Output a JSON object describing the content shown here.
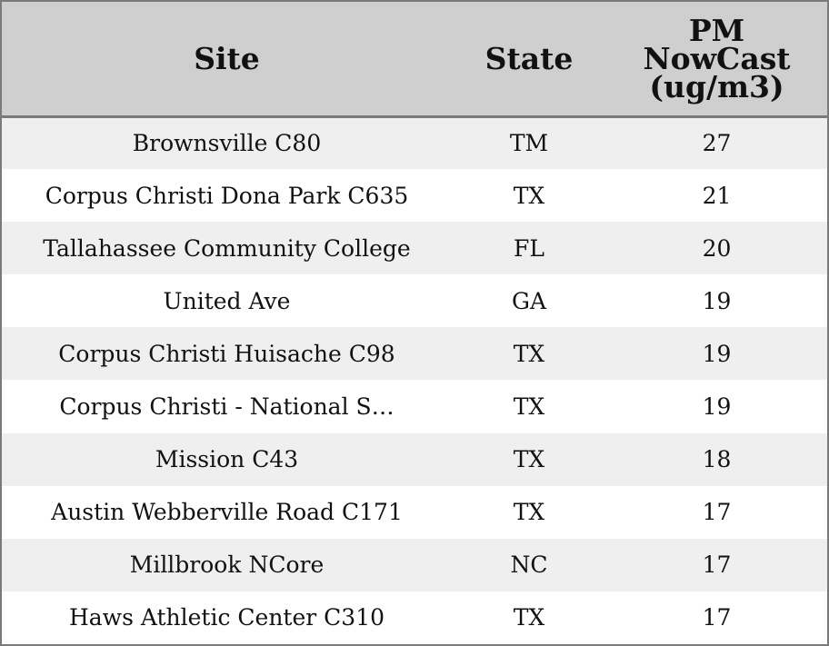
{
  "chart_data": {
    "type": "table",
    "columns": [
      "Site",
      "State",
      "PM NowCast (ug/m3)"
    ],
    "header_lines": {
      "site": [
        "Site"
      ],
      "state": [
        "State"
      ],
      "pm": [
        "PM",
        "NowCast",
        "(ug/m3)"
      ]
    },
    "rows": [
      {
        "site": "Brownsville C80",
        "state": "TM",
        "pm": "27"
      },
      {
        "site": "Corpus Christi Dona Park C635",
        "state": "TX",
        "pm": "21"
      },
      {
        "site": "Tallahassee Community College",
        "state": "FL",
        "pm": "20"
      },
      {
        "site": "United Ave",
        "state": "GA",
        "pm": "19"
      },
      {
        "site": "Corpus Christi Huisache C98",
        "state": "TX",
        "pm": "19"
      },
      {
        "site": "Corpus Christi - National S…",
        "state": "TX",
        "pm": "19"
      },
      {
        "site": "Mission C43",
        "state": "TX",
        "pm": "18"
      },
      {
        "site": "Austin Webberville Road C171",
        "state": "TX",
        "pm": "17"
      },
      {
        "site": "Millbrook NCore",
        "state": "NC",
        "pm": "17"
      },
      {
        "site": "Haws Athletic Center C310",
        "state": "TX",
        "pm": "17"
      }
    ],
    "colors": {
      "header_bg": "#cfcfcf",
      "alt_row_bg": "#efefef",
      "row_bg": "#ffffff",
      "border": "#7a7a7a"
    }
  }
}
